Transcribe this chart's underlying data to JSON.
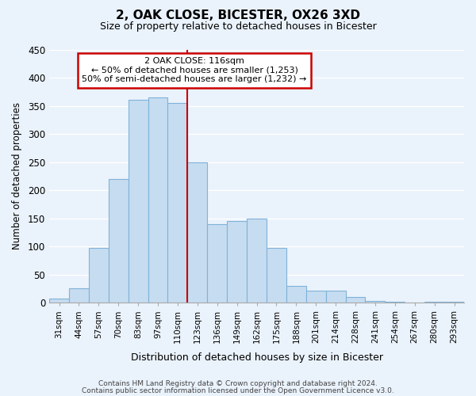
{
  "title": "2, OAK CLOSE, BICESTER, OX26 3XD",
  "subtitle": "Size of property relative to detached houses in Bicester",
  "xlabel": "Distribution of detached houses by size in Bicester",
  "ylabel": "Number of detached properties",
  "bar_color": "#c6dcf0",
  "bar_edge_color": "#7fb3d9",
  "categories": [
    "31sqm",
    "44sqm",
    "57sqm",
    "70sqm",
    "83sqm",
    "97sqm",
    "110sqm",
    "123sqm",
    "136sqm",
    "149sqm",
    "162sqm",
    "175sqm",
    "188sqm",
    "201sqm",
    "214sqm",
    "228sqm",
    "241sqm",
    "254sqm",
    "267sqm",
    "280sqm",
    "293sqm"
  ],
  "values": [
    8,
    25,
    98,
    220,
    360,
    365,
    355,
    250,
    140,
    145,
    150,
    97,
    30,
    22,
    22,
    10,
    3,
    2,
    1,
    2,
    2
  ],
  "ylim": [
    0,
    450
  ],
  "yticks": [
    0,
    50,
    100,
    150,
    200,
    250,
    300,
    350,
    400,
    450
  ],
  "annotation_title": "2 OAK CLOSE: 116sqm",
  "annotation_line1": "← 50% of detached houses are smaller (1,253)",
  "annotation_line2": "50% of semi-detached houses are larger (1,232) →",
  "vline_position": 6.5,
  "vline_color": "#cc0000",
  "annotation_box_color": "#ffffff",
  "annotation_box_edgecolor": "#cc0000",
  "footer_line1": "Contains HM Land Registry data © Crown copyright and database right 2024.",
  "footer_line2": "Contains public sector information licensed under the Open Government Licence v3.0.",
  "background_color": "#eaf2fb",
  "grid_color": "#ffffff"
}
